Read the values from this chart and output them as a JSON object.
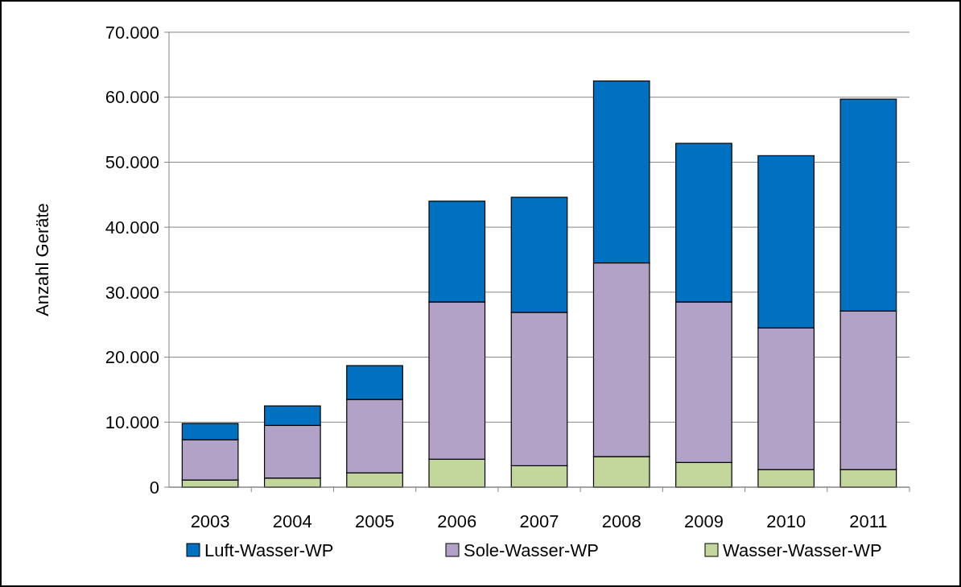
{
  "chart_data": {
    "type": "bar",
    "stacked": true,
    "ylabel": "Anzahl Geräte",
    "categories": [
      "2003",
      "2004",
      "2005",
      "2006",
      "2007",
      "2008",
      "2009",
      "2010",
      "2011"
    ],
    "series": [
      {
        "name": "Wasser-Wasser-WP",
        "color": "#c3d69b",
        "values": [
          1100,
          1400,
          2200,
          4300,
          3300,
          4700,
          3800,
          2700,
          2700
        ]
      },
      {
        "name": "Sole-Wasser-WP",
        "color": "#b3a2c7",
        "values": [
          6200,
          8100,
          11300,
          24200,
          23600,
          29800,
          24700,
          21800,
          24400
        ]
      },
      {
        "name": "Luft-Wasser-WP",
        "color": "#0070c0",
        "values": [
          2500,
          3000,
          5200,
          15500,
          17700,
          28000,
          24400,
          26500,
          32600
        ]
      }
    ],
    "ylim": [
      0,
      70000
    ],
    "yticks": [
      {
        "value": 0,
        "label": "0"
      },
      {
        "value": 10000,
        "label": "10.000"
      },
      {
        "value": 20000,
        "label": "20.000"
      },
      {
        "value": 30000,
        "label": "30.000"
      },
      {
        "value": 40000,
        "label": "40.000"
      },
      {
        "value": 50000,
        "label": "50.000"
      },
      {
        "value": 60000,
        "label": "60.000"
      },
      {
        "value": 70000,
        "label": "70.000"
      }
    ],
    "grid": "y",
    "legend": "bottom"
  }
}
